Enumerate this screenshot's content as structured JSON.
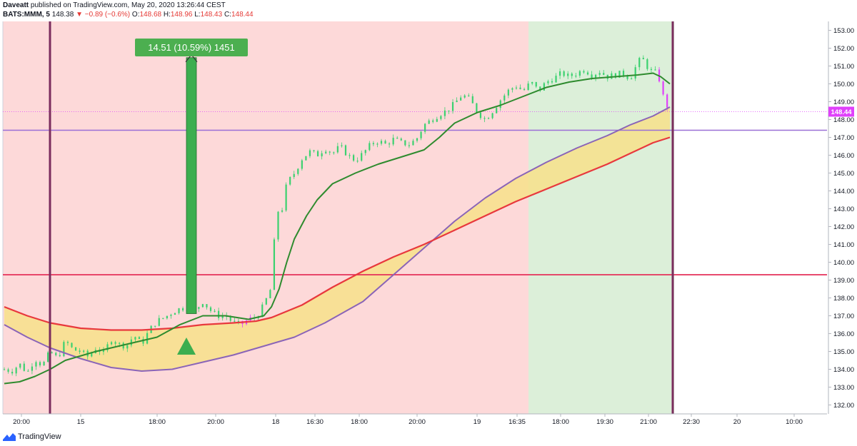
{
  "header": {
    "author": "Daveatt",
    "publish_text": "published on TradingView.com, May 20, 2020 13:26:44 CEST",
    "symbol": "BATS:MMM, 5",
    "last": "148.38",
    "change_arrow": "▼",
    "change": "−0.89 (−0.6%)",
    "o_label": "O:",
    "o_value": "148.68",
    "h_label": "H:",
    "h_value": "148.96",
    "l_label": "L:",
    "l_value": "148.43",
    "c_label": "C:",
    "c_value": "148.44"
  },
  "footer": {
    "brand": "TradingView"
  },
  "colors": {
    "bg_red": "#fdd9d9",
    "bg_green": "#dcefd9",
    "band_fill": "#f7e08a",
    "ema_red": "#e8383d",
    "ema_purple": "#8a64b8",
    "ema_green": "#2e8b2e",
    "candle_up": "#3bd16f",
    "candle_dn": "#e040fb",
    "h_line_purple": "#9a6fd6",
    "h_line_red": "#e5305a",
    "v_line": "#7b2d5e",
    "arrow": "#3cae4f",
    "price_tag": "#e040fb"
  },
  "chart_data": {
    "type": "candlestick",
    "y_axis": {
      "min": 131.5,
      "max": 153.5,
      "ticks": [
        "132.00",
        "133.00",
        "134.00",
        "135.00",
        "136.00",
        "137.00",
        "138.00",
        "139.00",
        "140.00",
        "141.00",
        "142.00",
        "143.00",
        "144.00",
        "145.00",
        "146.00",
        "147.00",
        "148.00",
        "149.00",
        "150.00",
        "151.00",
        "152.00",
        "153.00"
      ]
    },
    "x_ticks": [
      "20:00",
      "15",
      "18:00",
      "20:00",
      "18",
      "16:30",
      "18:00",
      "20:00",
      "19",
      "16:35",
      "18:00",
      "19:30",
      "21:00",
      "22:30",
      "20",
      "10:00"
    ],
    "last_price_label": "148.44",
    "annotation": {
      "label": "14.51 (10.59%) 1451",
      "from_price": 137.12,
      "to_price": 151.63
    },
    "horizontal_levels": [
      147.4,
      139.3
    ],
    "close_path": [
      [
        0,
        134.0
      ],
      [
        5,
        133.9
      ],
      [
        10,
        134.3
      ],
      [
        15,
        133.8
      ],
      [
        20,
        134.6
      ],
      [
        25,
        134.2
      ],
      [
        30,
        135.0
      ],
      [
        35,
        134.6
      ],
      [
        40,
        135.6
      ],
      [
        45,
        135.1
      ],
      [
        50,
        135.0
      ],
      [
        55,
        134.7
      ],
      [
        60,
        135.2
      ],
      [
        65,
        134.9
      ],
      [
        70,
        135.7
      ],
      [
        75,
        135.4
      ],
      [
        80,
        135.3
      ],
      [
        85,
        135.9
      ],
      [
        90,
        135.4
      ],
      [
        95,
        136.2
      ],
      [
        100,
        136.7
      ],
      [
        105,
        136.9
      ],
      [
        110,
        137.2
      ],
      [
        115,
        137.4
      ],
      [
        120,
        137.5
      ],
      [
        125,
        137.3
      ],
      [
        130,
        137.8
      ],
      [
        135,
        137.3
      ],
      [
        140,
        137.0
      ],
      [
        145,
        137.0
      ],
      [
        150,
        136.6
      ],
      [
        155,
        136.5
      ],
      [
        160,
        136.8
      ],
      [
        165,
        136.9
      ],
      [
        170,
        137.6
      ],
      [
        175,
        138.6
      ],
      [
        178,
        142.8
      ],
      [
        182,
        143.0
      ],
      [
        185,
        144.4
      ],
      [
        190,
        145.0
      ],
      [
        195,
        145.8
      ],
      [
        200,
        146.2
      ],
      [
        205,
        146.0
      ],
      [
        210,
        146.4
      ],
      [
        215,
        146.1
      ],
      [
        220,
        146.5
      ],
      [
        225,
        146.0
      ],
      [
        230,
        145.7
      ],
      [
        235,
        146.1
      ],
      [
        240,
        146.6
      ],
      [
        245,
        146.8
      ],
      [
        250,
        146.6
      ],
      [
        255,
        146.9
      ],
      [
        260,
        146.7
      ],
      [
        265,
        146.6
      ],
      [
        270,
        146.9
      ],
      [
        275,
        147.7
      ],
      [
        280,
        148.0
      ],
      [
        285,
        148.3
      ],
      [
        290,
        148.5
      ],
      [
        295,
        148.9
      ],
      [
        300,
        149.4
      ],
      [
        305,
        149.1
      ],
      [
        310,
        148.4
      ],
      [
        315,
        148.0
      ],
      [
        320,
        148.5
      ],
      [
        325,
        149.1
      ],
      [
        330,
        149.6
      ],
      [
        335,
        149.9
      ],
      [
        340,
        149.6
      ],
      [
        345,
        150.1
      ],
      [
        350,
        149.6
      ],
      [
        355,
        150.1
      ],
      [
        360,
        150.3
      ],
      [
        365,
        150.6
      ],
      [
        370,
        150.4
      ],
      [
        375,
        150.6
      ],
      [
        380,
        150.8
      ],
      [
        385,
        150.5
      ],
      [
        390,
        150.7
      ],
      [
        395,
        150.4
      ],
      [
        400,
        150.5
      ],
      [
        405,
        150.6
      ],
      [
        410,
        150.3
      ],
      [
        415,
        151.2
      ],
      [
        418,
        151.5
      ],
      [
        420,
        150.9
      ],
      [
        422,
        151.0
      ],
      [
        425,
        150.5
      ],
      [
        428,
        150.8
      ],
      [
        430,
        149.7
      ],
      [
        432,
        149.2
      ],
      [
        434,
        148.8
      ],
      [
        436,
        148.4
      ]
    ],
    "ema_green": [
      [
        0,
        133.2
      ],
      [
        10,
        133.3
      ],
      [
        20,
        133.6
      ],
      [
        30,
        134.0
      ],
      [
        40,
        134.5
      ],
      [
        60,
        135.0
      ],
      [
        80,
        135.4
      ],
      [
        100,
        135.8
      ],
      [
        115,
        136.5
      ],
      [
        130,
        137.0
      ],
      [
        145,
        137.0
      ],
      [
        160,
        136.8
      ],
      [
        170,
        137.0
      ],
      [
        175,
        137.5
      ],
      [
        180,
        138.5
      ],
      [
        185,
        140.0
      ],
      [
        190,
        141.3
      ],
      [
        198,
        142.6
      ],
      [
        205,
        143.5
      ],
      [
        215,
        144.4
      ],
      [
        230,
        145.0
      ],
      [
        245,
        145.5
      ],
      [
        260,
        145.9
      ],
      [
        275,
        146.3
      ],
      [
        285,
        147.0
      ],
      [
        295,
        147.8
      ],
      [
        310,
        148.4
      ],
      [
        325,
        148.8
      ],
      [
        340,
        149.3
      ],
      [
        355,
        149.8
      ],
      [
        370,
        150.1
      ],
      [
        385,
        150.3
      ],
      [
        400,
        150.4
      ],
      [
        415,
        150.5
      ],
      [
        425,
        150.6
      ],
      [
        430,
        150.4
      ],
      [
        436,
        150.0
      ]
    ],
    "ema_red": [
      [
        0,
        137.5
      ],
      [
        15,
        137.0
      ],
      [
        30,
        136.6
      ],
      [
        50,
        136.3
      ],
      [
        70,
        136.2
      ],
      [
        90,
        136.2
      ],
      [
        110,
        136.3
      ],
      [
        130,
        136.5
      ],
      [
        150,
        136.6
      ],
      [
        165,
        136.7
      ],
      [
        175,
        136.9
      ],
      [
        195,
        137.6
      ],
      [
        215,
        138.6
      ],
      [
        235,
        139.5
      ],
      [
        255,
        140.3
      ],
      [
        275,
        141.0
      ],
      [
        295,
        141.8
      ],
      [
        315,
        142.6
      ],
      [
        335,
        143.4
      ],
      [
        355,
        144.1
      ],
      [
        375,
        144.8
      ],
      [
        395,
        145.5
      ],
      [
        410,
        146.1
      ],
      [
        425,
        146.7
      ],
      [
        436,
        147.0
      ]
    ],
    "ema_purple": [
      [
        0,
        136.5
      ],
      [
        15,
        135.8
      ],
      [
        30,
        135.2
      ],
      [
        50,
        134.6
      ],
      [
        70,
        134.1
      ],
      [
        90,
        133.9
      ],
      [
        110,
        134.0
      ],
      [
        130,
        134.4
      ],
      [
        150,
        134.8
      ],
      [
        170,
        135.3
      ],
      [
        190,
        135.8
      ],
      [
        210,
        136.6
      ],
      [
        235,
        137.8
      ],
      [
        255,
        139.3
      ],
      [
        275,
        140.8
      ],
      [
        295,
        142.3
      ],
      [
        315,
        143.6
      ],
      [
        335,
        144.7
      ],
      [
        355,
        145.6
      ],
      [
        375,
        146.4
      ],
      [
        395,
        147.1
      ],
      [
        410,
        147.7
      ],
      [
        425,
        148.2
      ],
      [
        436,
        148.7
      ]
    ]
  }
}
